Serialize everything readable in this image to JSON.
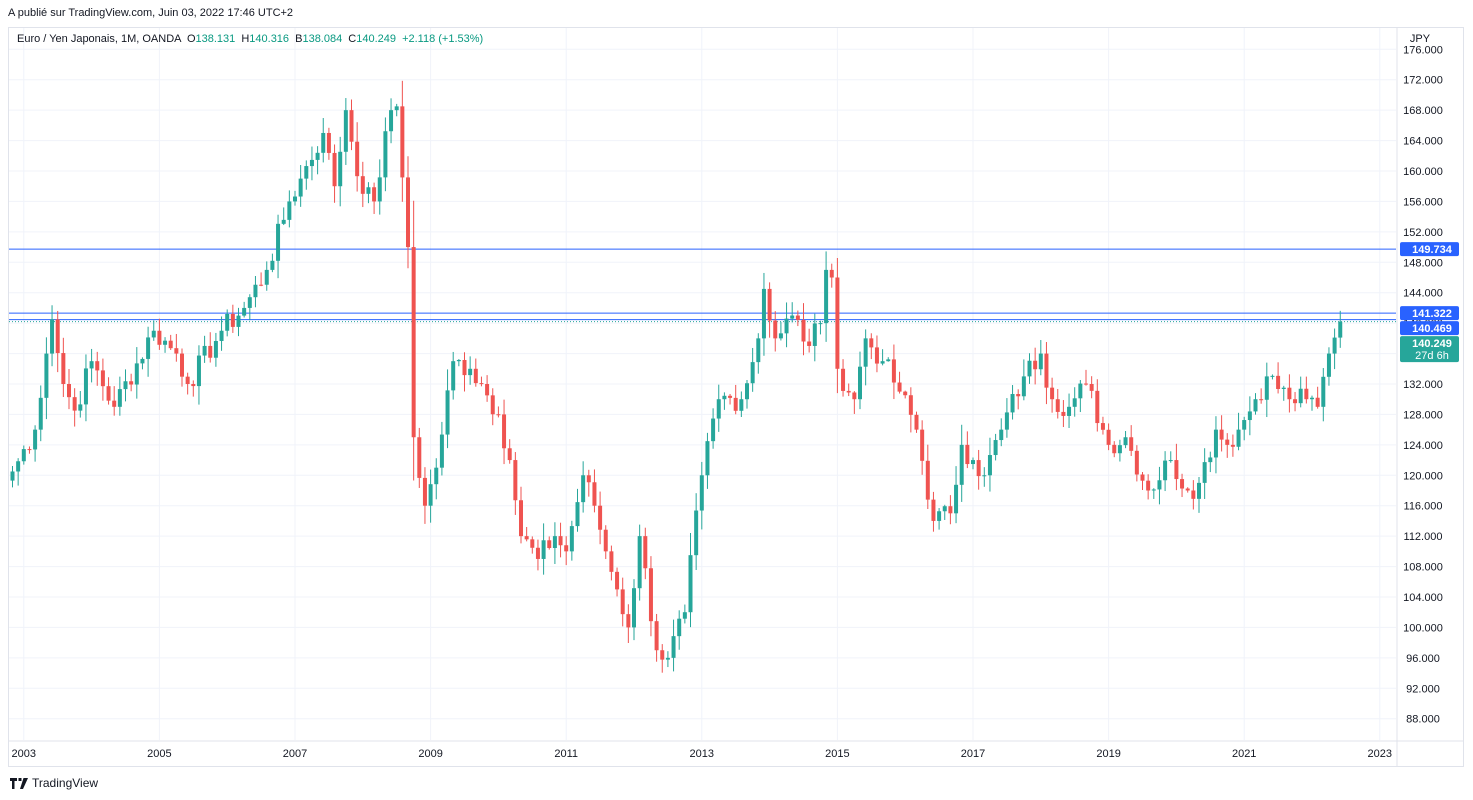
{
  "header": {
    "published": "A publié sur TradingView.com, Juin 03, 2022 17:46 UTC+2"
  },
  "legend": {
    "symbol": "Euro / Yen Japonais, 1M, OANDA",
    "open_label": "O",
    "open": "138.131",
    "high_label": "H",
    "high": "140.316",
    "low_label": "B",
    "low": "138.084",
    "close_label": "C",
    "close": "140.249",
    "change": "+2.118 (+1.53%)"
  },
  "footer": {
    "brand": "TradingView",
    "logo_icon": "tradingview-logo-icon"
  },
  "colors": {
    "up": "#26a69a",
    "down": "#ef5350",
    "line": "#2962ff",
    "grid": "#f0f3fa",
    "current": "#26a69a"
  },
  "chart_data": {
    "type": "candlestick",
    "title": "Euro / Yen Japonais, 1M, OANDA",
    "currency": "JPY",
    "ylim": [
      85.2,
      178.8
    ],
    "y_ticks": [
      "88.000",
      "92.000",
      "96.000",
      "100.000",
      "104.000",
      "108.000",
      "112.000",
      "116.000",
      "120.000",
      "124.000",
      "128.000",
      "132.000",
      "136.000",
      "140.000",
      "144.000",
      "148.000",
      "152.000",
      "156.000",
      "160.000",
      "164.000",
      "168.000",
      "172.000",
      "176.000"
    ],
    "x_ticks": [
      "2003",
      "2005",
      "2007",
      "2009",
      "2011",
      "2013",
      "2015",
      "2017",
      "2019",
      "2021",
      "2023"
    ],
    "start_date": "2002-11",
    "horizontal_lines": [
      149.734,
      141.322,
      140.469
    ],
    "price_labels": [
      {
        "value": 149.734,
        "text": "149.734",
        "color": "#2962ff"
      },
      {
        "value": 141.322,
        "text": "141.322",
        "color": "#2962ff"
      },
      {
        "value": 140.469,
        "text": "140.469",
        "color": "#2962ff"
      },
      {
        "value": 140.249,
        "text": "140.249",
        "sub": "27d 6h",
        "color": "#26a69a"
      }
    ],
    "anchors": [
      [
        "2002-11",
        120.5
      ],
      [
        "2003-03",
        126
      ],
      [
        "2003-05",
        136
      ],
      [
        "2003-06",
        140.5
      ],
      [
        "2003-08",
        132
      ],
      [
        "2003-10",
        128.5
      ],
      [
        "2004-01",
        135
      ],
      [
        "2004-05",
        129
      ],
      [
        "2004-12",
        139
      ],
      [
        "2005-04",
        136
      ],
      [
        "2005-06",
        132
      ],
      [
        "2005-12",
        139
      ],
      [
        "2006-04",
        142
      ],
      [
        "2006-08",
        147
      ],
      [
        "2006-12",
        156
      ],
      [
        "2007-02",
        159
      ],
      [
        "2007-06",
        165
      ],
      [
        "2007-08",
        158
      ],
      [
        "2007-10",
        168
      ],
      [
        "2008-01",
        157
      ],
      [
        "2008-03",
        156
      ],
      [
        "2008-06",
        168
      ],
      [
        "2008-07",
        168.5
      ],
      [
        "2008-09",
        150
      ],
      [
        "2008-10",
        125
      ],
      [
        "2008-12",
        116
      ],
      [
        "2009-02",
        121
      ],
      [
        "2009-05",
        135
      ],
      [
        "2009-08",
        134
      ],
      [
        "2009-10",
        132
      ],
      [
        "2010-01",
        128
      ],
      [
        "2010-03",
        122
      ],
      [
        "2010-05",
        112
      ],
      [
        "2010-08",
        109
      ],
      [
        "2010-11",
        112
      ],
      [
        "2011-01",
        110
      ],
      [
        "2011-04",
        120
      ],
      [
        "2011-06",
        116
      ],
      [
        "2011-08",
        110
      ],
      [
        "2011-10",
        105
      ],
      [
        "2011-12",
        100
      ],
      [
        "2012-02",
        112
      ],
      [
        "2012-05",
        97
      ],
      [
        "2012-07",
        96
      ],
      [
        "2012-10",
        102
      ],
      [
        "2013-01",
        120
      ],
      [
        "2013-04",
        130
      ],
      [
        "2013-08",
        130
      ],
      [
        "2013-11",
        138
      ],
      [
        "2013-12",
        144.5
      ],
      [
        "2014-02",
        138
      ],
      [
        "2014-05",
        141
      ],
      [
        "2014-08",
        137
      ],
      [
        "2014-10",
        140
      ],
      [
        "2014-11",
        147
      ],
      [
        "2014-12",
        146
      ],
      [
        "2015-01",
        134
      ],
      [
        "2015-04",
        130
      ],
      [
        "2015-06",
        138
      ],
      [
        "2015-09",
        135
      ],
      [
        "2015-12",
        131
      ],
      [
        "2016-03",
        126
      ],
      [
        "2016-06",
        114
      ],
      [
        "2016-09",
        115
      ],
      [
        "2016-11",
        124
      ],
      [
        "2017-01",
        122
      ],
      [
        "2017-03",
        120
      ],
      [
        "2017-06",
        126
      ],
      [
        "2017-10",
        133
      ],
      [
        "2018-01",
        136
      ],
      [
        "2018-03",
        130
      ],
      [
        "2018-06",
        129
      ],
      [
        "2018-09",
        132
      ],
      [
        "2019-01",
        124
      ],
      [
        "2019-04",
        125
      ],
      [
        "2019-08",
        118
      ],
      [
        "2019-12",
        122
      ],
      [
        "2020-03",
        118
      ],
      [
        "2020-05",
        119
      ],
      [
        "2020-08",
        126
      ],
      [
        "2020-10",
        124
      ],
      [
        "2020-12",
        126
      ],
      [
        "2021-03",
        130
      ],
      [
        "2021-05",
        133
      ],
      [
        "2021-09",
        130
      ],
      [
        "2021-12",
        130
      ],
      [
        "2022-02",
        129
      ],
      [
        "2022-04",
        136
      ],
      [
        "2022-05",
        138.1
      ],
      [
        "2022-06",
        140.2
      ]
    ]
  }
}
